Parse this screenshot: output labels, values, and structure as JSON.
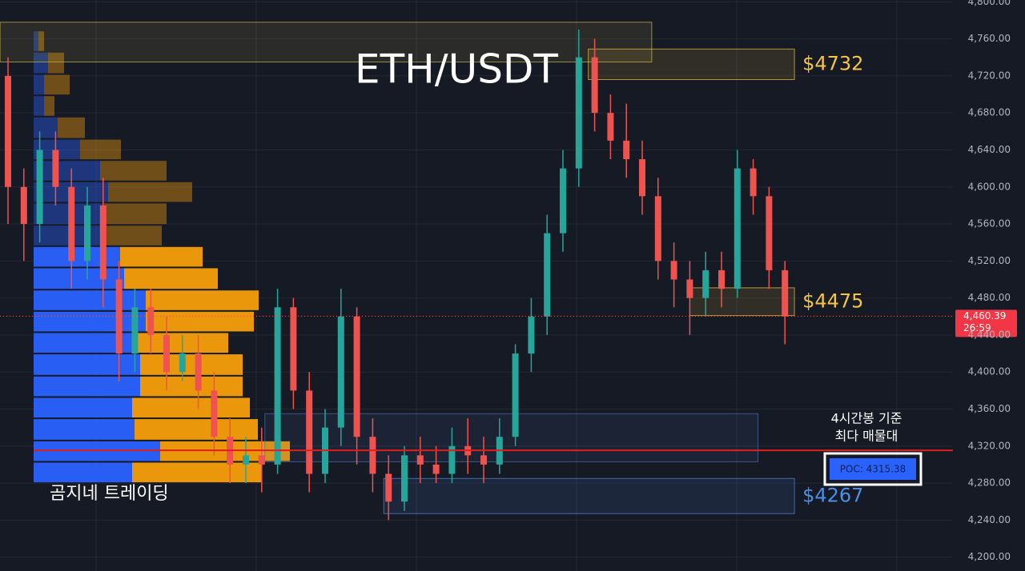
{
  "chart_data": {
    "type": "candlestick",
    "title": "ETH/USDT",
    "ylim": [
      4185,
      4802
    ],
    "yticks": [
      {
        "value": 4200,
        "label": "4,200.00"
      },
      {
        "value": 4240,
        "label": "4,240.00"
      },
      {
        "value": 4280,
        "label": "4,280.00"
      },
      {
        "value": 4320,
        "label": "4,320.00"
      },
      {
        "value": 4360,
        "label": "4,360.00"
      },
      {
        "value": 4400,
        "label": "4,400.00"
      },
      {
        "value": 4440,
        "label": "4,440.00"
      },
      {
        "value": 4480,
        "label": "4,480.00"
      },
      {
        "value": 4520,
        "label": "4,520.00"
      },
      {
        "value": 4560,
        "label": "4,560.00"
      },
      {
        "value": 4600,
        "label": "4,600.00"
      },
      {
        "value": 4640,
        "label": "4,640.00"
      },
      {
        "value": 4680,
        "label": "4,680.00"
      },
      {
        "value": 4720,
        "label": "4,720.00"
      },
      {
        "value": 4760,
        "label": "4,760.00"
      },
      {
        "value": 4800,
        "label": "4,800.00"
      }
    ],
    "up_color": "#26a69a",
    "down_color": "#ef5350",
    "candles": {
      "open": [
        4720,
        4600,
        4560,
        4640,
        4600,
        4520,
        4580,
        4500,
        4420,
        4470,
        4440,
        4400,
        4420,
        4380,
        4330,
        4300,
        4310,
        4300,
        4470,
        4380,
        4290,
        4340,
        4460,
        4330,
        4290,
        4260,
        4310,
        4300,
        4290,
        4320,
        4310,
        4300,
        4330,
        4420,
        4460,
        4550,
        4620,
        4740,
        4680,
        4650,
        4630,
        4590,
        4520,
        4500,
        4480,
        4510,
        4490,
        4620,
        4590,
        4510
      ],
      "high": [
        4740,
        4620,
        4660,
        4660,
        4620,
        4600,
        4610,
        4520,
        4490,
        4490,
        4460,
        4440,
        4440,
        4400,
        4350,
        4330,
        4340,
        4490,
        4480,
        4400,
        4360,
        4490,
        4470,
        4350,
        4310,
        4320,
        4330,
        4320,
        4340,
        4350,
        4330,
        4350,
        4430,
        4480,
        4570,
        4640,
        4770,
        4760,
        4700,
        4690,
        4650,
        4610,
        4540,
        4520,
        4530,
        4530,
        4640,
        4630,
        4600,
        4520
      ],
      "low": [
        4560,
        4520,
        4540,
        4580,
        4490,
        4500,
        4470,
        4390,
        4400,
        4420,
        4380,
        4390,
        4360,
        4310,
        4280,
        4280,
        4270,
        4290,
        4360,
        4270,
        4280,
        4320,
        4300,
        4270,
        4240,
        4250,
        4280,
        4280,
        4280,
        4290,
        4280,
        4290,
        4320,
        4400,
        4440,
        4530,
        4600,
        4660,
        4630,
        4610,
        4570,
        4500,
        4470,
        4440,
        4460,
        4470,
        4480,
        4570,
        4490,
        4430
      ],
      "close": [
        4600,
        4560,
        4640,
        4600,
        4520,
        4580,
        4500,
        4420,
        4470,
        4440,
        4400,
        4420,
        4380,
        4330,
        4300,
        4310,
        4300,
        4470,
        4380,
        4290,
        4340,
        4460,
        4330,
        4290,
        4260,
        4310,
        4300,
        4290,
        4320,
        4310,
        4300,
        4330,
        4420,
        4460,
        4550,
        4620,
        4740,
        4680,
        4650,
        4630,
        4590,
        4520,
        4500,
        4480,
        4510,
        4490,
        4620,
        4590,
        4510,
        4460
      ]
    },
    "volume_profile": {
      "bins": [
        4769,
        4746,
        4722,
        4699,
        4676,
        4652,
        4629,
        4606,
        4583,
        4559,
        4536,
        4513,
        4489,
        4466,
        4443,
        4420,
        4396,
        4373,
        4350,
        4326,
        4303,
        4280
      ],
      "buy": [
        6,
        18,
        13,
        13,
        30,
        58,
        83,
        93,
        88,
        83,
        108,
        113,
        140,
        140,
        128,
        133,
        133,
        123,
        126,
        158,
        123
      ],
      "sell": [
        7,
        20,
        32,
        13,
        34,
        51,
        83,
        105,
        78,
        77,
        103,
        117,
        141,
        135,
        115,
        128,
        128,
        147,
        154,
        162,
        162
      ],
      "buy_color": "#2962ff",
      "sell_color": "#f59e0b",
      "value_area": [
        4280,
        4536
      ]
    },
    "zones": [
      {
        "range": [
          4735,
          4778
        ],
        "x_range": [
          -0.5,
          40.6
        ],
        "color": "#c9b84a"
      },
      {
        "label": "$4732",
        "range": [
          4716,
          4749
        ],
        "x_range": [
          36.6,
          49.6
        ],
        "color": "#f5c542"
      },
      {
        "label": "$4475",
        "range": [
          4461,
          4491
        ],
        "x_range": [
          43,
          49.6
        ],
        "color": "#f5c542"
      },
      {
        "range": [
          4303,
          4355
        ],
        "x_range": [
          16.2,
          47.3
        ],
        "color": "#4a6fa5"
      },
      {
        "label": "$4267",
        "range": [
          4247,
          4285
        ],
        "x_range": [
          23.7,
          49.6
        ],
        "color": "#4a8fe8"
      }
    ],
    "poc": {
      "value": 4315.38,
      "label": "POC: 4315.38",
      "color": "#e01e1e"
    },
    "annotation": [
      "4시간봉 기준",
      "최다 매물대"
    ],
    "watermark": "곰지네 트레이딩",
    "last_price": {
      "value": 4460.39,
      "label": "4,460.39",
      "countdown": "26:59"
    }
  }
}
